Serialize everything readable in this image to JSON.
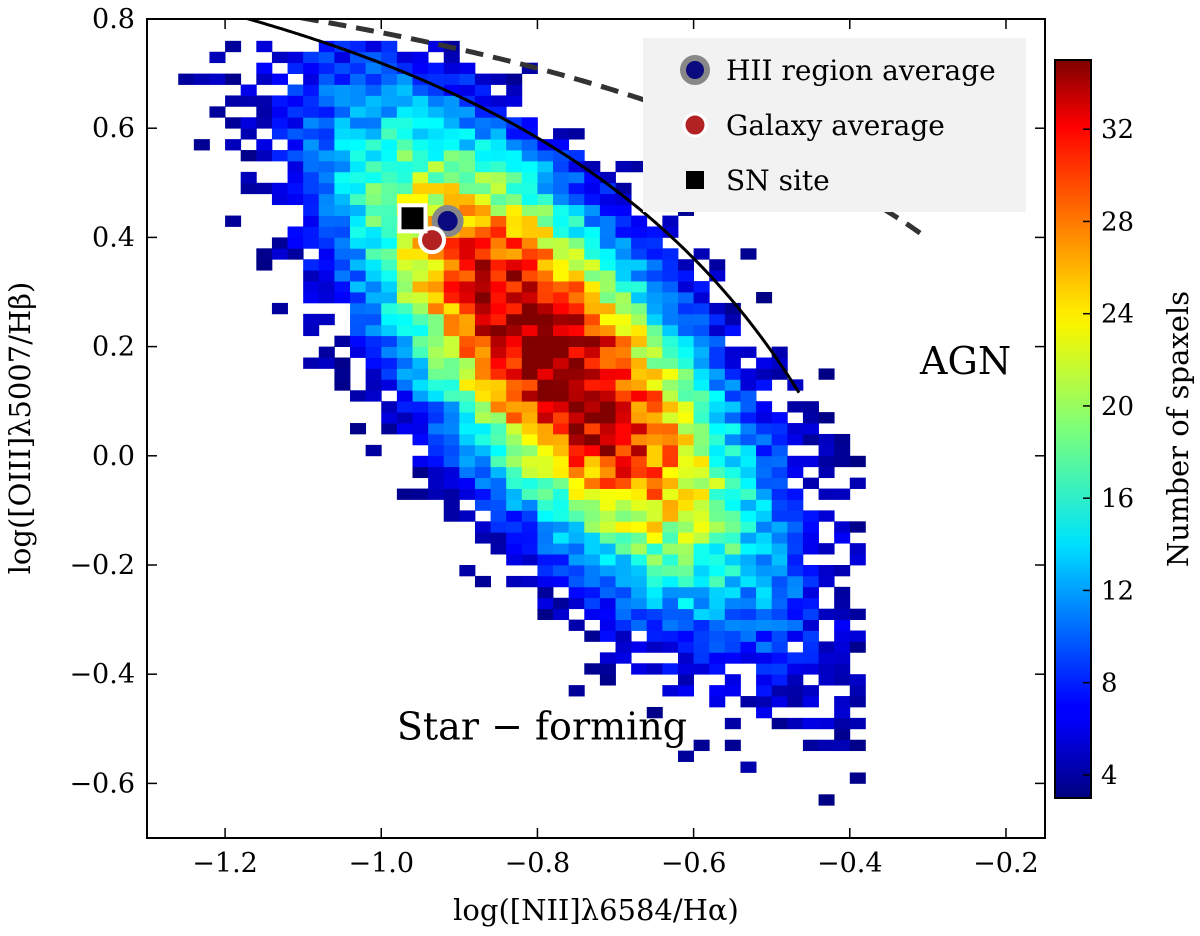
{
  "chart_data": {
    "type": "heatmap",
    "xlabel": "log([NII]λ6584/Hα)",
    "ylabel": "log([OIII]λ5007/Hβ)",
    "xlim": [
      -1.3,
      -0.15
    ],
    "ylim": [
      -0.7,
      0.8
    ],
    "xticks": [
      -1.2,
      -1.0,
      -0.8,
      -0.6,
      -0.4,
      -0.2
    ],
    "xtick_labels": [
      "−1.2",
      "−1.0",
      "−0.8",
      "−0.6",
      "−0.4",
      "−0.2"
    ],
    "yticks": [
      -0.6,
      -0.4,
      -0.2,
      0.0,
      0.2,
      0.4,
      0.6,
      0.8
    ],
    "ytick_labels": [
      "−0.6",
      "−0.4",
      "−0.2",
      "0.0",
      "0.2",
      "0.4",
      "0.6",
      "0.8"
    ],
    "colorbar": {
      "label": "Number of spaxels",
      "min": 3,
      "max": 35,
      "ticks": [
        4,
        8,
        12,
        16,
        20,
        24,
        28,
        32
      ],
      "tick_labels": [
        "4",
        "8",
        "12",
        "16",
        "20",
        "24",
        "28",
        "32"
      ],
      "colormap": "jet"
    },
    "density_model": {
      "center": [
        -0.78,
        0.18
      ],
      "major_axis_direction": [
        1.0,
        -2.0
      ],
      "sigma_major": 0.33,
      "sigma_minor": 0.11,
      "peak_count": 34,
      "bin_size": 0.02,
      "note": "2D histogram of spaxel line ratios, approximate distribution"
    },
    "curves": [
      {
        "name": "kauffmann-2003-demarcation",
        "style": "solid",
        "formula": "0.61/(x-0.05)+1.3",
        "x_range": [
          -1.3,
          -0.465
        ]
      },
      {
        "name": "kewley-2001-demarcation",
        "style": "dashed",
        "formula": "0.61/(x-0.47)+1.19",
        "x_range": [
          -1.28,
          -0.31
        ]
      }
    ],
    "points": [
      {
        "name": "HII region average",
        "x": -0.915,
        "y": 0.43,
        "color": "#0a0a7e",
        "edge": "#888888",
        "marker": "circle"
      },
      {
        "name": "Galaxy average",
        "x": -0.935,
        "y": 0.395,
        "color": "#b22222",
        "edge": "#ffffff",
        "marker": "circle"
      },
      {
        "name": "SN site",
        "x": -0.96,
        "y": 0.435,
        "color": "#000000",
        "edge": "#ffffff",
        "marker": "square"
      }
    ],
    "legend": {
      "position": "top-right",
      "entries": [
        "HII region average",
        "Galaxy average",
        "SN site"
      ]
    },
    "annotations": [
      {
        "text": "AGN",
        "x": -0.31,
        "y": 0.15
      },
      {
        "text": "Star − forming",
        "x": -0.98,
        "y": -0.52
      }
    ]
  }
}
